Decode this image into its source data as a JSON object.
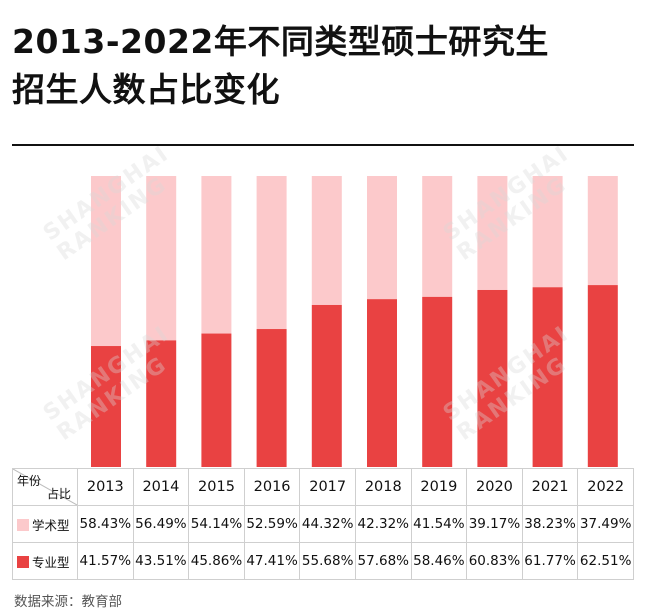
{
  "title_line1": "2013-2022年不同类型硕士研究生",
  "title_line2": "招生人数占比变化",
  "source": "数据来源：教育部",
  "watermark_line1": "SHANGHAI",
  "watermark_line2": "RANKING",
  "table": {
    "corner_top": "年份",
    "corner_bottom": "占比"
  },
  "colors": {
    "academic": "#fcc9cb",
    "professional": "#e94242"
  },
  "chart_data": {
    "type": "bar",
    "stacked": true,
    "categories": [
      "2013",
      "2014",
      "2015",
      "2016",
      "2017",
      "2018",
      "2019",
      "2020",
      "2021",
      "2022"
    ],
    "ylim": [
      0,
      100
    ],
    "series": [
      {
        "name": "学术型",
        "values": [
          58.43,
          56.49,
          54.14,
          52.59,
          44.32,
          42.32,
          41.54,
          39.17,
          38.23,
          37.49
        ],
        "labels": [
          "58.43%",
          "56.49%",
          "54.14%",
          "52.59%",
          "44.32%",
          "42.32%",
          "41.54%",
          "39.17%",
          "38.23%",
          "37.49%"
        ]
      },
      {
        "name": "专业型",
        "values": [
          41.57,
          43.51,
          45.86,
          47.41,
          55.68,
          57.68,
          58.46,
          60.83,
          61.77,
          62.51
        ],
        "labels": [
          "41.57%",
          "43.51%",
          "45.86%",
          "47.41%",
          "55.68%",
          "57.68%",
          "58.46%",
          "60.83%",
          "61.77%",
          "62.51%"
        ]
      }
    ]
  }
}
